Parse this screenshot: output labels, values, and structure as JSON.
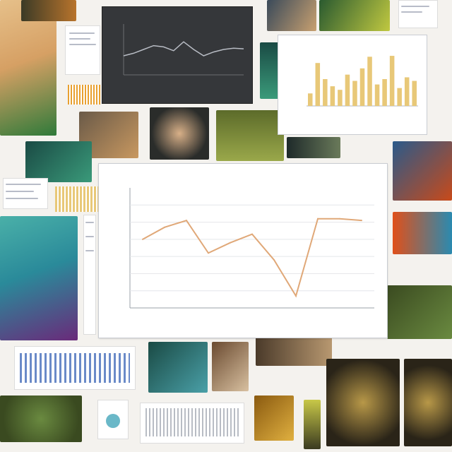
{
  "collage": {
    "photos": [
      {
        "name": "figure-statue-photo",
        "colors": [
          "#2f7a3a",
          "#d6a064",
          "#e6c08a"
        ]
      },
      {
        "name": "coral-photo-top-left",
        "colors": [
          "#3b3a26",
          "#b8742c"
        ]
      },
      {
        "name": "machinery-photo",
        "colors": [
          "#6a5a48",
          "#c89860"
        ]
      },
      {
        "name": "ornament-photo",
        "colors": [
          "#2a2c2a",
          "#d8b088"
        ]
      },
      {
        "name": "forest-photo",
        "colors": [
          "#5c6b2a",
          "#9aa84a"
        ]
      },
      {
        "name": "night-scene-photo",
        "colors": [
          "#1e2a2a",
          "#6a7a5a"
        ]
      },
      {
        "name": "leaf-photo-top",
        "colors": [
          "#2a5a30",
          "#c0c840"
        ]
      },
      {
        "name": "blue-green-sculpture-photo",
        "colors": [
          "#2a8a9a",
          "#4ab0a8",
          "#6a2a7a"
        ]
      },
      {
        "name": "teal-plant-photo",
        "colors": [
          "#1a4a44",
          "#3a9a7a"
        ]
      },
      {
        "name": "honeycomb-photo-left",
        "colors": [
          "#2a2418",
          "#b89848"
        ]
      },
      {
        "name": "honeycomb-photo-right",
        "colors": [
          "#2a2418",
          "#b89848"
        ]
      },
      {
        "name": "orange-abstract-photo",
        "colors": [
          "#c84a1a",
          "#2a5a8a"
        ]
      },
      {
        "name": "green-circle-photo",
        "colors": [
          "#3a4a20",
          "#6a8a40"
        ]
      }
    ]
  },
  "main_chart": {
    "chart_data": {
      "type": "line",
      "x": [
        "",
        "",
        "",
        "",
        "",
        "",
        "",
        "",
        "",
        "",
        ""
      ],
      "series": [
        {
          "values": [
            40,
            47,
            51,
            32,
            38,
            43,
            28,
            7,
            52,
            52,
            51
          ]
        }
      ],
      "ylim": [
        0,
        70
      ],
      "grid": true,
      "legend": "none",
      "color": "#e0a878"
    }
  },
  "dark_chart": {
    "chart_data": {
      "type": "line",
      "series": [
        {
          "values": [
            30,
            34,
            40,
            46,
            44,
            38,
            52,
            40,
            30,
            36,
            40,
            42,
            41
          ]
        }
      ],
      "ylim": [
        0,
        80
      ],
      "grid": false,
      "color": "#b8bcc4"
    }
  },
  "bar_chart": {
    "chart_data": {
      "type": "bar",
      "series": [
        {
          "values": [
            14,
            48,
            30,
            22,
            18,
            35,
            28,
            42,
            55,
            24,
            30,
            56,
            20,
            32,
            28
          ]
        }
      ],
      "ylim": [
        0,
        60
      ],
      "color": "#e8c878"
    }
  }
}
